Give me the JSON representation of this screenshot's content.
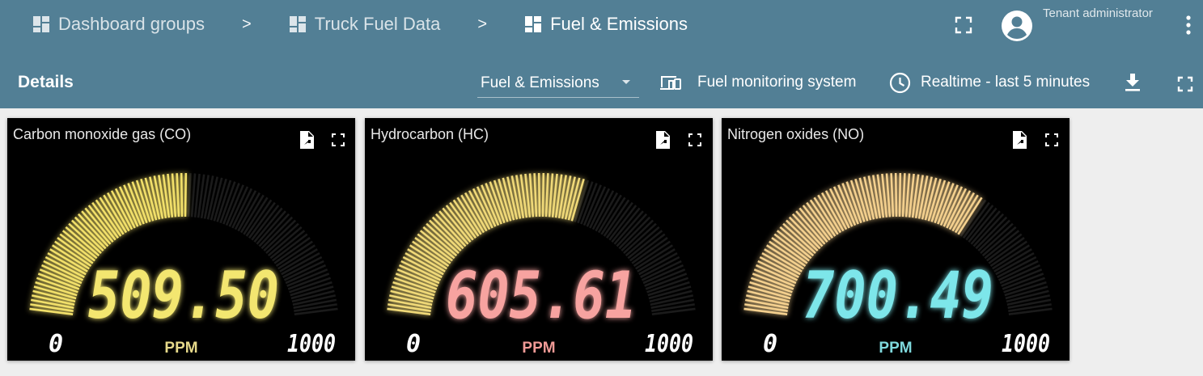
{
  "breadcrumbs": [
    {
      "label": "Dashboard groups"
    },
    {
      "label": "Truck Fuel Data"
    },
    {
      "label": "Fuel & Emissions"
    }
  ],
  "breadcrumb_separator": ">",
  "user": {
    "role": "Tenant administrator"
  },
  "toolbar": {
    "title": "Details",
    "state": "Fuel & Emissions",
    "entity_alias": "Fuel monitoring system",
    "timewindow": "Realtime - last 5 minutes"
  },
  "widgets": [
    {
      "title": "Carbon monoxide gas (CO)",
      "value": "509.50",
      "fraction": 0.5095,
      "min": "0",
      "max": "1000",
      "unit": "PPM",
      "bar_color": "#f2e06a",
      "value_color": "#f3e66f",
      "unit_color": "#e6d98a"
    },
    {
      "title": "Hydrocarbon (HC)",
      "value": "605.61",
      "fraction": 0.6056,
      "min": "0",
      "max": "1000",
      "unit": "PPM",
      "bar_color": "#f0d978",
      "value_color": "#f7a3a0",
      "unit_color": "#f09a96"
    },
    {
      "title": "Nitrogen oxides (NO)",
      "value": "700.49",
      "fraction": 0.7005,
      "min": "0",
      "max": "1000",
      "unit": "PPM",
      "bar_color": "#f4d08e",
      "value_color": "#7de6ea",
      "unit_color": "#7fd9dd"
    }
  ],
  "icons": {
    "breadcrumb": "dashboard-icon",
    "fullscreen": "fullscreen-icon",
    "avatar": "account-circle-icon",
    "more": "more-vert-icon",
    "entity": "devices-icon",
    "time": "clock-icon",
    "download": "download-icon",
    "export": "export-icon"
  }
}
